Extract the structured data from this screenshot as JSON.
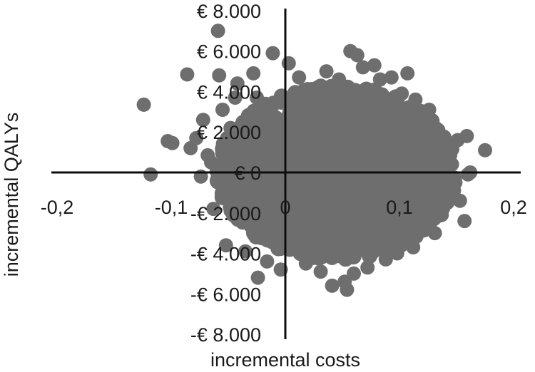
{
  "chart_data": {
    "type": "scatter",
    "title": "",
    "xlabel": "incremental costs",
    "ylabel": "incremental  QALYs",
    "xlim": [
      -0.2,
      0.2
    ],
    "ylim": [
      -8000,
      8000
    ],
    "x_ticks": [
      {
        "value": -0.2,
        "label": "-0,2"
      },
      {
        "value": -0.1,
        "label": "-0,1"
      },
      {
        "value": 0,
        "label": "0"
      },
      {
        "value": 0.1,
        "label": "0,1"
      },
      {
        "value": 0.2,
        "label": "0,2"
      }
    ],
    "y_ticks": [
      {
        "value": 8000,
        "label": "€ 8.000"
      },
      {
        "value": 6000,
        "label": "€ 6.000"
      },
      {
        "value": 4000,
        "label": "€ 4.000"
      },
      {
        "value": 2000,
        "label": "€ 2.000"
      },
      {
        "value": 0,
        "label": "€ 0"
      },
      {
        "value": -2000,
        "label": "-€ 2.000"
      },
      {
        "value": -4000,
        "label": "-€ 4.000"
      },
      {
        "value": -6000,
        "label": "-€ 6.000"
      },
      {
        "value": -8000,
        "label": "-€ 8.000"
      }
    ],
    "grid": false,
    "legend": "none",
    "point_color": "#6e6e6e",
    "axis_color": "#0d0d0d",
    "series": [
      {
        "points": [
          [
            -0.124,
            3350
          ],
          [
            -0.118,
            -100
          ],
          [
            -0.103,
            1550
          ],
          [
            -0.099,
            1450
          ],
          [
            -0.086,
            4850
          ],
          [
            -0.083,
            1200
          ],
          [
            -0.078,
            1700
          ],
          [
            -0.074,
            -200
          ],
          [
            -0.072,
            2600
          ],
          [
            -0.068,
            850
          ],
          [
            -0.065,
            500
          ],
          [
            -0.063,
            -1800
          ],
          [
            -0.059,
            7000
          ],
          [
            -0.058,
            4800
          ],
          [
            -0.055,
            3100
          ],
          [
            -0.052,
            -3600
          ],
          [
            -0.051,
            1700
          ],
          [
            -0.048,
            2200
          ],
          [
            -0.047,
            -700
          ],
          [
            -0.044,
            3700
          ],
          [
            -0.042,
            4400
          ],
          [
            -0.041,
            200
          ],
          [
            -0.038,
            -2400
          ],
          [
            -0.035,
            -3900
          ],
          [
            -0.034,
            1000
          ],
          [
            -0.032,
            2800
          ],
          [
            -0.028,
            4900
          ],
          [
            -0.026,
            -3000
          ],
          [
            -0.025,
            3700
          ],
          [
            -0.024,
            -5200
          ],
          [
            -0.021,
            1500
          ],
          [
            -0.019,
            3200
          ],
          [
            -0.018,
            -1500
          ],
          [
            -0.016,
            -4400
          ],
          [
            -0.014,
            600
          ],
          [
            -0.012,
            2400
          ],
          [
            -0.011,
            5900
          ],
          [
            -0.009,
            -2000
          ],
          [
            -0.007,
            3500
          ],
          [
            -0.005,
            -800
          ],
          [
            -0.004,
            -4800
          ],
          [
            -0.002,
            1200
          ],
          [
            0.003,
            5400
          ],
          [
            0.006,
            -3800
          ],
          [
            0.012,
            4700
          ],
          [
            0.018,
            -4500
          ],
          [
            0.026,
            3800
          ],
          [
            0.031,
            -4900
          ],
          [
            0.036,
            5000
          ],
          [
            0.041,
            -5600
          ],
          [
            0.047,
            4600
          ],
          [
            0.052,
            -5400
          ],
          [
            0.054,
            -5800
          ],
          [
            0.057,
            6000
          ],
          [
            0.06,
            -5000
          ],
          [
            0.063,
            5800
          ],
          [
            0.068,
            5200
          ],
          [
            0.072,
            -4700
          ],
          [
            0.078,
            5300
          ],
          [
            0.083,
            4600
          ],
          [
            0.088,
            -4300
          ],
          [
            0.093,
            4700
          ],
          [
            0.098,
            -4000
          ],
          [
            0.102,
            3900
          ],
          [
            0.107,
            4900
          ],
          [
            0.112,
            -3700
          ],
          [
            0.114,
            3600
          ],
          [
            0.118,
            -2900
          ],
          [
            0.122,
            2900
          ],
          [
            0.126,
            3100
          ],
          [
            0.128,
            2400
          ],
          [
            0.131,
            -3000
          ],
          [
            0.134,
            2100
          ],
          [
            0.137,
            -2100
          ],
          [
            0.139,
            1300
          ],
          [
            0.142,
            -1500
          ],
          [
            0.146,
            400
          ],
          [
            0.149,
            -500
          ],
          [
            0.151,
            1600
          ],
          [
            0.153,
            -1400
          ],
          [
            0.157,
            -2400
          ],
          [
            0.159,
            1800
          ],
          [
            0.16,
            -100
          ],
          [
            0.162,
            0
          ],
          [
            0.175,
            1100
          ]
        ]
      }
    ]
  }
}
